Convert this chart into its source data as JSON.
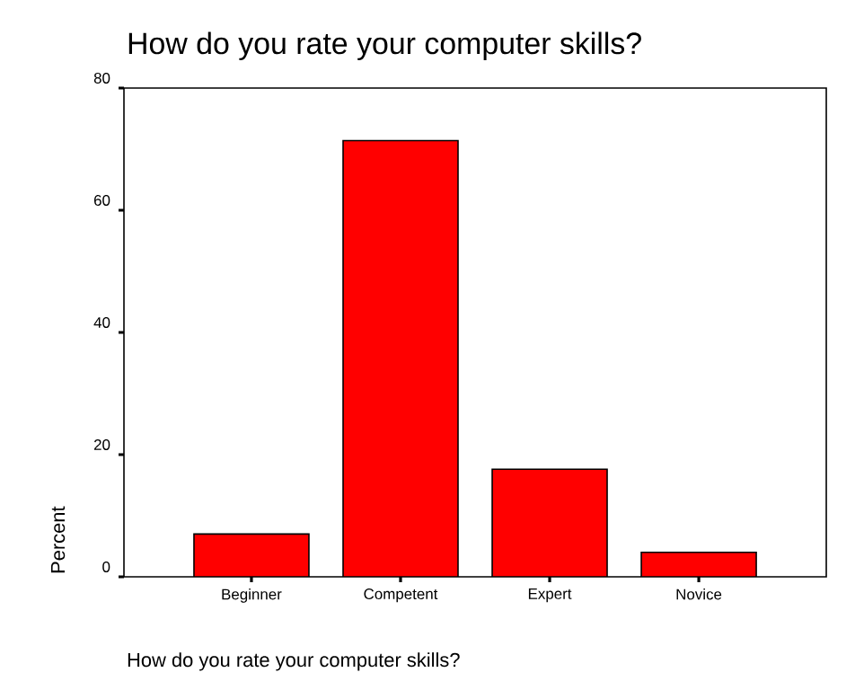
{
  "chart_data": {
    "type": "bar",
    "title": "How do you rate your computer skills?",
    "xlabel": "How do you rate your computer skills?",
    "ylabel": "Percent",
    "categories": [
      "Beginner",
      "Competent",
      "Expert",
      "Novice"
    ],
    "values": [
      7.0,
      71.4,
      17.6,
      4.0
    ],
    "color": "#ff0000",
    "ylim": [
      0,
      80
    ],
    "yticks": [
      0,
      20,
      40,
      60,
      80
    ],
    "grid": false
  }
}
